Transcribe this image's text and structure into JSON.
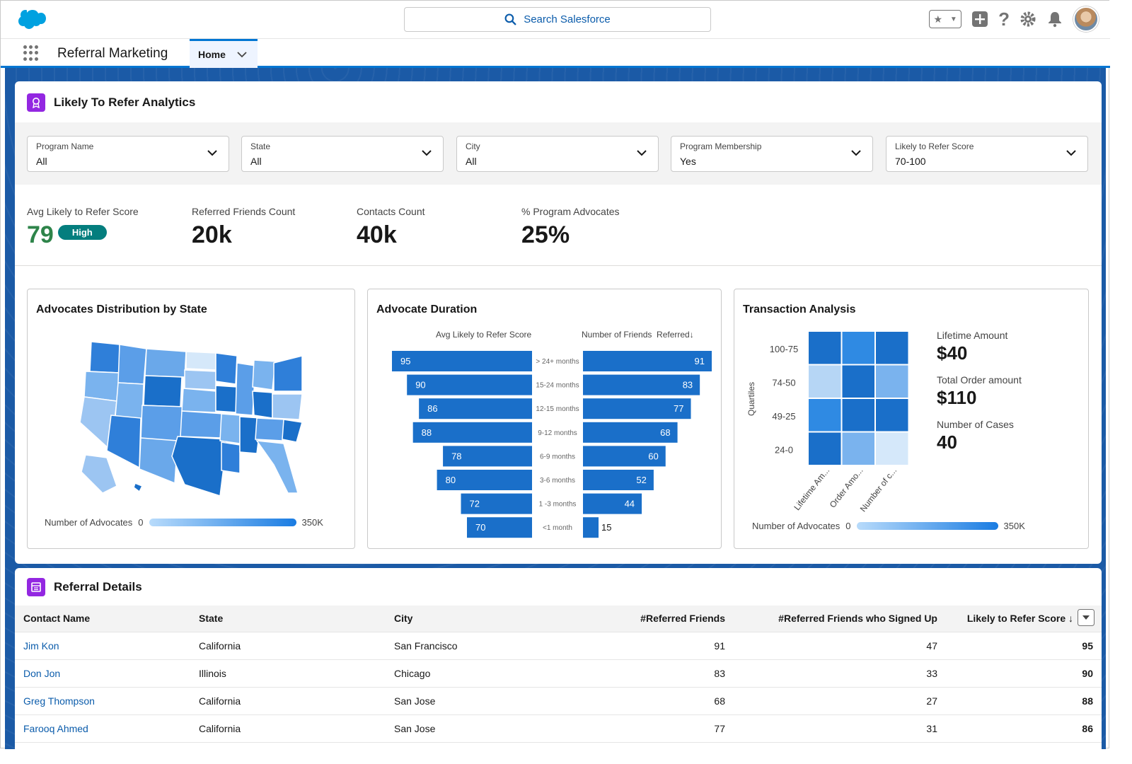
{
  "header": {
    "search_placeholder": "Search Salesforce"
  },
  "nav": {
    "app_name": "Referral Marketing",
    "tab_home": "Home"
  },
  "analytics": {
    "title": "Likely To Refer Analytics",
    "filters": [
      {
        "label": "Program Name",
        "value": "All"
      },
      {
        "label": "State",
        "value": "All"
      },
      {
        "label": "City",
        "value": "All"
      },
      {
        "label": "Program Membership",
        "value": "Yes"
      },
      {
        "label": "Likely to Refer Score",
        "value": "70-100"
      }
    ],
    "kpis": [
      {
        "label": "Avg Likely to Refer Score",
        "value": "79",
        "badge": "High",
        "color": "#2e844a"
      },
      {
        "label": "Referred Friends Count",
        "value": "20k"
      },
      {
        "label": "Contacts Count",
        "value": "40k"
      },
      {
        "label": "% Program Advocates",
        "value": "25%"
      }
    ]
  },
  "map_panel": {
    "title": "Advocates Distribution by State",
    "legend_label": "Number of Advocates",
    "legend_min": "0",
    "legend_max": "350K"
  },
  "duration_panel": {
    "title": "Advocate Duration",
    "left_header": "Avg Likely to Refer Score",
    "right_header": "Number of Friends  Referred↓"
  },
  "transaction_panel": {
    "title": "Transaction Analysis",
    "y_axis_label": "Quartiles",
    "legend_label": "Number of Advocates",
    "legend_min": "0",
    "legend_max": "350K",
    "stats": [
      {
        "label": "Lifetime Amount",
        "value": "$40"
      },
      {
        "label": "Total Order amount",
        "value": "$110"
      },
      {
        "label": "Number of Cases",
        "value": "40"
      }
    ]
  },
  "chart_data": [
    {
      "type": "bar",
      "categories": [
        "> 24+ months",
        "15-24 months",
        "12-15 months",
        "9-12 months",
        "6-9 months",
        "3-6 months",
        "1 -3 months",
        "<1 month"
      ],
      "series": [
        {
          "name": "Avg Likely to Refer Score",
          "values": [
            95,
            90,
            86,
            88,
            78,
            80,
            72,
            70
          ]
        },
        {
          "name": "Number of Friends  Referred↓",
          "values": [
            91,
            83,
            77,
            68,
            60,
            52,
            44,
            15
          ]
        }
      ],
      "title": "Advocate Duration"
    },
    {
      "type": "heatmap",
      "title": "Transaction Analysis",
      "rows": [
        "100-75",
        "74-50",
        "49-25",
        "24-0"
      ],
      "columns": [
        "Lifetime Am...",
        "Order Amo...",
        "Number of c..."
      ],
      "ylabel": "Quartiles",
      "colors": [
        [
          "#1a6fc9",
          "#2f8ae3",
          "#1a6fc9"
        ],
        [
          "#b6d6f5",
          "#1a6fc9",
          "#7ab3ee"
        ],
        [
          "#2f8ae3",
          "#1a6fc9",
          "#1a6fc9"
        ],
        [
          "#1a6fc9",
          "#7ab3ee",
          "#d5e8fa"
        ]
      ]
    }
  ],
  "details": {
    "title": "Referral Details",
    "columns": [
      "Contact Name",
      "State",
      "City",
      "#Referred Friends",
      "#Referred Friends who Signed Up",
      "Likely to Refer Score ↓"
    ],
    "rows": [
      [
        "Jim Kon",
        "California",
        "San Francisco",
        "91",
        "47",
        "95"
      ],
      [
        "Don Jon",
        "Illinois",
        "Chicago",
        "83",
        "33",
        "90"
      ],
      [
        "Greg Thompson",
        "California",
        "San Jose",
        "68",
        "27",
        "88"
      ],
      [
        "Farooq Ahmed",
        "California",
        "San Jose",
        "77",
        "31",
        "86"
      ]
    ]
  }
}
